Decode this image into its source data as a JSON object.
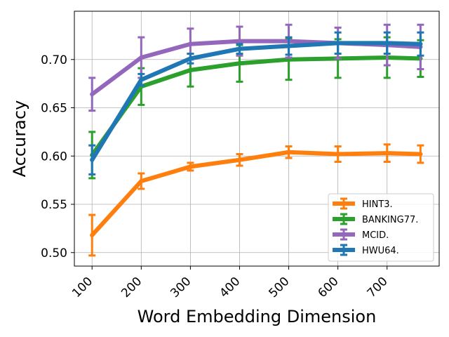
{
  "chart_data": {
    "type": "line",
    "title": "",
    "xlabel": "Word Embedding Dimension",
    "ylabel": "Accuracy",
    "x": [
      100,
      200,
      300,
      400,
      500,
      600,
      700,
      768
    ],
    "xticks": [
      "100",
      "200",
      "300",
      "400",
      "500",
      "600",
      "700"
    ],
    "yticks": [
      "0.50",
      "0.55",
      "0.60",
      "0.65",
      "0.70"
    ],
    "xlim": [
      64,
      806
    ],
    "ylim": [
      0.486,
      0.75
    ],
    "grid": true,
    "legend_position": "bottom-right",
    "series": [
      {
        "name": "HINT3.",
        "color": "#ff7f0e",
        "values": [
          0.518,
          0.574,
          0.589,
          0.596,
          0.604,
          0.602,
          0.603,
          0.602
        ],
        "errors": [
          0.021,
          0.008,
          0.004,
          0.006,
          0.006,
          0.008,
          0.009,
          0.009
        ]
      },
      {
        "name": "BANKING77.",
        "color": "#2ca02c",
        "values": [
          0.601,
          0.672,
          0.689,
          0.696,
          0.7,
          0.701,
          0.702,
          0.701
        ],
        "errors": [
          0.024,
          0.019,
          0.017,
          0.019,
          0.021,
          0.02,
          0.021,
          0.019
        ]
      },
      {
        "name": "MCID.",
        "color": "#9467bd",
        "values": [
          0.664,
          0.702,
          0.716,
          0.719,
          0.719,
          0.717,
          0.715,
          0.713
        ],
        "errors": [
          0.017,
          0.021,
          0.016,
          0.015,
          0.017,
          0.016,
          0.021,
          0.023
        ]
      },
      {
        "name": "HWU64.",
        "color": "#1f77b4",
        "values": [
          0.596,
          0.679,
          0.701,
          0.711,
          0.714,
          0.717,
          0.717,
          0.716
        ],
        "errors": [
          0.015,
          0.006,
          0.005,
          0.005,
          0.009,
          0.011,
          0.011,
          0.012
        ]
      }
    ]
  }
}
